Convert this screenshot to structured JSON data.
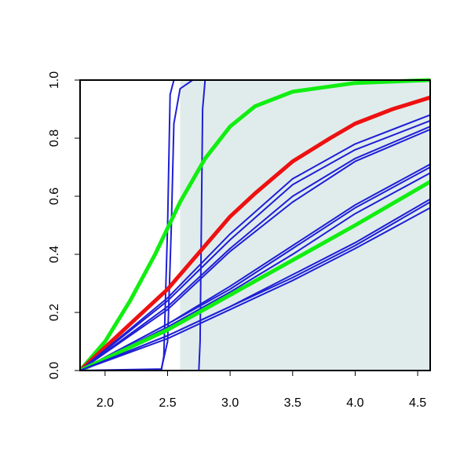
{
  "chart_data": {
    "type": "line",
    "title": "",
    "xlabel": "",
    "ylabel": "",
    "xlim": [
      1.8,
      4.6
    ],
    "ylim": [
      0,
      1
    ],
    "x_ticks": [
      2.0,
      2.5,
      3.0,
      3.5,
      4.0,
      4.5
    ],
    "x_tick_labels": [
      "2.0",
      "2.5",
      "3.0",
      "3.5",
      "4.0",
      "4.5"
    ],
    "y_ticks": [
      0.0,
      0.2,
      0.4,
      0.6,
      0.8,
      1.0
    ],
    "y_tick_labels": [
      "0.0",
      "0.2",
      "0.4",
      "0.6",
      "0.8",
      "1.0"
    ],
    "grid": false,
    "legend": "none",
    "shaded_region": {
      "x_from": 2.6,
      "x_to": 4.6,
      "color": "#e0ecec"
    },
    "colors": {
      "blue": "#1f1fd6",
      "red": "#ee1111",
      "green": "#11ee11"
    },
    "series": [
      {
        "color": "blue",
        "width": 2,
        "points": [
          [
            1.8,
            0
          ],
          [
            2.45,
            0
          ],
          [
            2.47,
            0.05
          ],
          [
            2.5,
            0.5
          ],
          [
            2.52,
            0.95
          ],
          [
            2.55,
            1
          ],
          [
            4.6,
            1
          ]
        ]
      },
      {
        "color": "blue",
        "width": 2,
        "points": [
          [
            1.8,
            0
          ],
          [
            2.45,
            0.005
          ],
          [
            2.5,
            0.1
          ],
          [
            2.53,
            0.5
          ],
          [
            2.55,
            0.85
          ],
          [
            2.6,
            0.97
          ],
          [
            2.7,
            1
          ],
          [
            4.6,
            1
          ]
        ]
      },
      {
        "color": "blue",
        "width": 2,
        "points": [
          [
            1.8,
            0
          ],
          [
            2.75,
            0
          ],
          [
            2.76,
            0.1
          ],
          [
            2.77,
            0.5
          ],
          [
            2.78,
            0.9
          ],
          [
            2.8,
            1
          ],
          [
            4.6,
            1
          ]
        ]
      },
      {
        "color": "green",
        "width": 5,
        "points": [
          [
            1.8,
            0
          ],
          [
            2.0,
            0.1
          ],
          [
            2.2,
            0.24
          ],
          [
            2.4,
            0.4
          ],
          [
            2.6,
            0.58
          ],
          [
            2.8,
            0.73
          ],
          [
            3.0,
            0.84
          ],
          [
            3.2,
            0.91
          ],
          [
            3.5,
            0.96
          ],
          [
            4.0,
            0.99
          ],
          [
            4.6,
            1
          ]
        ]
      },
      {
        "color": "red",
        "width": 5,
        "points": [
          [
            1.8,
            0
          ],
          [
            2.0,
            0.08
          ],
          [
            2.2,
            0.16
          ],
          [
            2.5,
            0.28
          ],
          [
            2.8,
            0.43
          ],
          [
            3.0,
            0.53
          ],
          [
            3.2,
            0.61
          ],
          [
            3.5,
            0.72
          ],
          [
            3.8,
            0.8
          ],
          [
            4.0,
            0.85
          ],
          [
            4.3,
            0.9
          ],
          [
            4.6,
            0.94
          ]
        ]
      },
      {
        "color": "blue",
        "width": 2,
        "points": [
          [
            1.8,
            0
          ],
          [
            2.5,
            0.25
          ],
          [
            3.0,
            0.47
          ],
          [
            3.5,
            0.66
          ],
          [
            4.0,
            0.78
          ],
          [
            4.6,
            0.88
          ]
        ]
      },
      {
        "color": "blue",
        "width": 2,
        "points": [
          [
            1.8,
            0
          ],
          [
            2.5,
            0.24
          ],
          [
            3.0,
            0.45
          ],
          [
            3.5,
            0.64
          ],
          [
            4.0,
            0.76
          ],
          [
            4.6,
            0.86
          ]
        ]
      },
      {
        "color": "blue",
        "width": 2,
        "points": [
          [
            1.8,
            0
          ],
          [
            2.5,
            0.22
          ],
          [
            3.0,
            0.42
          ],
          [
            3.5,
            0.6
          ],
          [
            4.0,
            0.73
          ],
          [
            4.6,
            0.84
          ]
        ]
      },
      {
        "color": "blue",
        "width": 2,
        "points": [
          [
            1.8,
            0
          ],
          [
            2.5,
            0.21
          ],
          [
            3.0,
            0.41
          ],
          [
            3.5,
            0.58
          ],
          [
            4.0,
            0.72
          ],
          [
            4.6,
            0.83
          ]
        ]
      },
      {
        "color": "blue",
        "width": 2,
        "points": [
          [
            1.8,
            0
          ],
          [
            2.5,
            0.16
          ],
          [
            3.0,
            0.29
          ],
          [
            3.5,
            0.43
          ],
          [
            4.0,
            0.57
          ],
          [
            4.6,
            0.71
          ]
        ]
      },
      {
        "color": "blue",
        "width": 2,
        "points": [
          [
            1.8,
            0
          ],
          [
            2.5,
            0.16
          ],
          [
            3.0,
            0.28
          ],
          [
            3.5,
            0.42
          ],
          [
            4.0,
            0.56
          ],
          [
            4.6,
            0.7
          ]
        ]
      },
      {
        "color": "blue",
        "width": 2,
        "points": [
          [
            1.8,
            0
          ],
          [
            2.5,
            0.15
          ],
          [
            3.0,
            0.27
          ],
          [
            3.5,
            0.4
          ],
          [
            4.0,
            0.54
          ],
          [
            4.6,
            0.68
          ]
        ]
      },
      {
        "color": "green",
        "width": 5,
        "points": [
          [
            1.8,
            0
          ],
          [
            2.5,
            0.14
          ],
          [
            3.0,
            0.26
          ],
          [
            3.5,
            0.38
          ],
          [
            4.0,
            0.5
          ],
          [
            4.6,
            0.65
          ]
        ]
      },
      {
        "color": "blue",
        "width": 2,
        "points": [
          [
            1.8,
            0
          ],
          [
            2.5,
            0.12
          ],
          [
            3.0,
            0.22
          ],
          [
            3.5,
            0.33
          ],
          [
            4.0,
            0.44
          ],
          [
            4.6,
            0.59
          ]
        ]
      },
      {
        "color": "blue",
        "width": 2,
        "points": [
          [
            1.8,
            0
          ],
          [
            2.5,
            0.12
          ],
          [
            3.0,
            0.22
          ],
          [
            3.5,
            0.32
          ],
          [
            4.0,
            0.43
          ],
          [
            4.6,
            0.58
          ]
        ]
      },
      {
        "color": "blue",
        "width": 2,
        "points": [
          [
            1.8,
            0
          ],
          [
            2.5,
            0.11
          ],
          [
            3.0,
            0.21
          ],
          [
            3.5,
            0.31
          ],
          [
            4.0,
            0.42
          ],
          [
            4.6,
            0.56
          ]
        ]
      }
    ]
  }
}
